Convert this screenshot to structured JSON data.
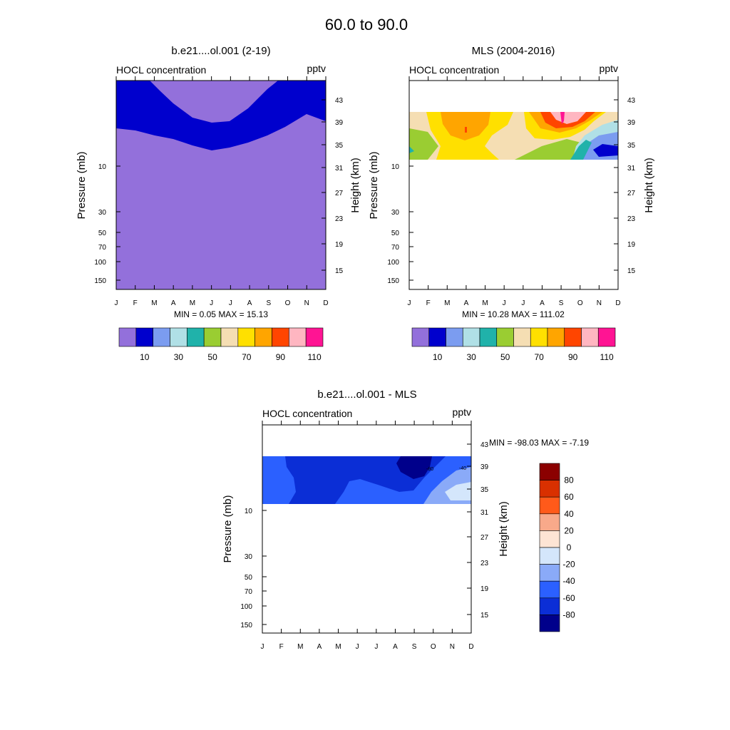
{
  "figure": {
    "title": "60.0 to  90.0"
  },
  "chart_data": [
    {
      "type": "heatmap",
      "title": "b.e21....ol.001 (2-19)",
      "variable_label": "HOCL concentration",
      "units": "pptv",
      "xlabel": "",
      "ylabel": "Pressure (mb)",
      "y2label": "Height (km)",
      "months": [
        "J",
        "F",
        "M",
        "A",
        "M",
        "J",
        "J",
        "A",
        "S",
        "O",
        "N",
        "D"
      ],
      "pressure_ticks": [
        "10",
        "30",
        "50",
        "70",
        "100",
        "150"
      ],
      "height_ticks": [
        "43",
        "39",
        "35",
        "31",
        "27",
        "23",
        "19",
        "15"
      ],
      "minmax_text": "MIN =   0.05  MAX =  15.13",
      "colorbar_ticks": [
        "10",
        "30",
        "50",
        "70",
        "90",
        "110"
      ],
      "colorbar_colors": [
        "#9370db",
        "#0000cd",
        "#7b9cf0",
        "#b0e0e6",
        "#20b2aa",
        "#9acd32",
        "#f5deb3",
        "#ffe000",
        "#ffa500",
        "#ff4500",
        "#ffb6c1",
        "#ff1493"
      ],
      "note": "Model field is 0-10 pptv (purple) everywhere except a 10-20 pptv (blue) layer near 35-43 km, thickest in winter."
    },
    {
      "type": "heatmap",
      "title": "MLS (2004-2016)",
      "variable_label": "HOCL concentration",
      "units": "pptv",
      "ylabel": "Pressure (mb)",
      "y2label": "Height (km)",
      "months": [
        "J",
        "F",
        "M",
        "A",
        "M",
        "J",
        "J",
        "A",
        "S",
        "O",
        "N",
        "D"
      ],
      "pressure_ticks": [
        "10",
        "30",
        "50",
        "70",
        "100",
        "150"
      ],
      "height_ticks": [
        "43",
        "39",
        "35",
        "31",
        "27",
        "23",
        "19",
        "15"
      ],
      "minmax_text": "MIN =  10.28  MAX =  111.02",
      "colorbar_ticks": [
        "10",
        "30",
        "50",
        "70",
        "90",
        "110"
      ],
      "colorbar_colors": [
        "#9370db",
        "#0000cd",
        "#7b9cf0",
        "#b0e0e6",
        "#20b2aa",
        "#9acd32",
        "#f5deb3",
        "#ffe000",
        "#ffa500",
        "#ff4500",
        "#ffb6c1",
        "#ff1493"
      ],
      "note": "Observed data only between about 31 and 40 km; maxima (~90-111 pptv) near September, ~80 pptv near April."
    },
    {
      "type": "heatmap",
      "title": "b.e21....ol.001 - MLS",
      "variable_label": "HOCL concentration",
      "units": "pptv",
      "ylabel": "Pressure (mb)",
      "y2label": "Height (km)",
      "months": [
        "J",
        "F",
        "M",
        "A",
        "M",
        "J",
        "J",
        "A",
        "S",
        "O",
        "N",
        "D"
      ],
      "pressure_ticks": [
        "10",
        "30",
        "50",
        "70",
        "100",
        "150"
      ],
      "height_ticks": [
        "43",
        "39",
        "35",
        "31",
        "27",
        "23",
        "19",
        "15"
      ],
      "minmax_text": "MIN = -98.03  MAX =  -7.19",
      "contour_labels": [
        "-80",
        "-40"
      ],
      "colorbar_ticks": [
        "80",
        "60",
        "40",
        "20",
        "0",
        "-20",
        "-40",
        "-60",
        "-80"
      ],
      "colorbar_colors": [
        "#8b0000",
        "#d93000",
        "#ff5a1a",
        "#f8a98a",
        "#fde4d4",
        "#d4e6fb",
        "#8aaaf8",
        "#2b60ff",
        "#0b2ed6",
        "#00008b"
      ],
      "note": "Difference is negative everywhere in the observed layer: mostly -60 to -80, minimum ~-98 near September, near -20 late in the year."
    }
  ]
}
